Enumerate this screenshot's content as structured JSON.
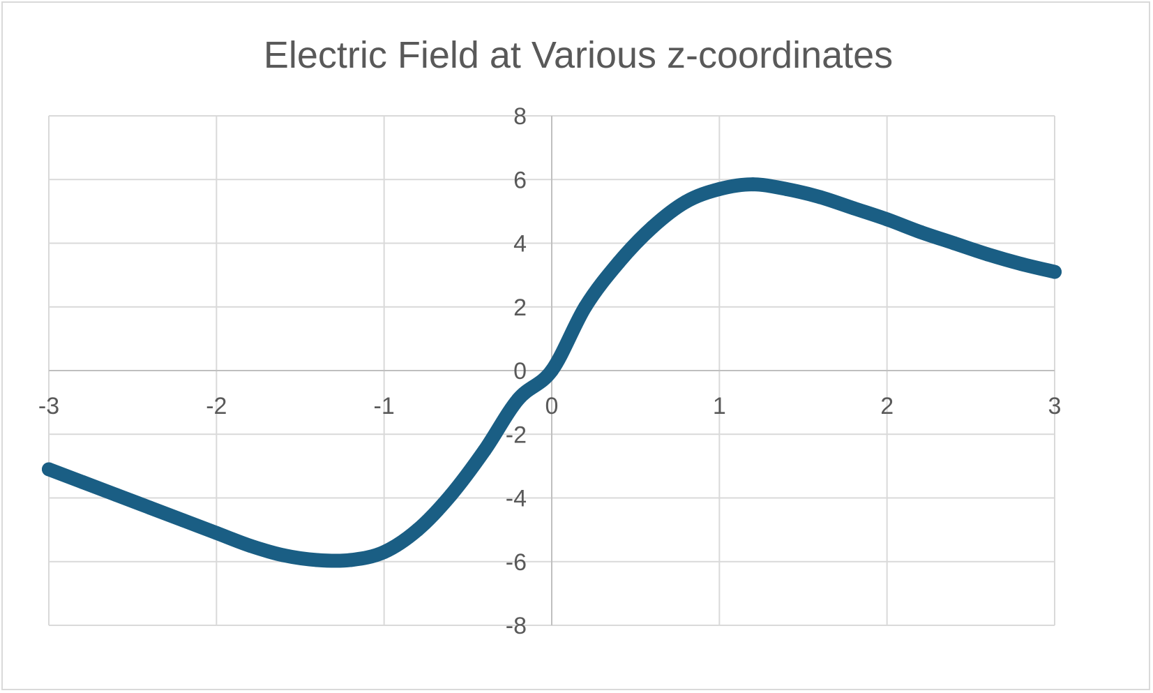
{
  "chart_data": {
    "type": "scatter",
    "title": "Electric Field at Various z-coordinates",
    "xlabel": "",
    "ylabel": "",
    "xlim": [
      -3,
      3
    ],
    "ylim": [
      -8,
      8
    ],
    "x_ticks": [
      -3,
      -2,
      -1,
      0,
      1,
      2,
      3
    ],
    "y_ticks": [
      -8,
      -6,
      -4,
      -2,
      0,
      2,
      4,
      6,
      8
    ],
    "x_tick_labels": [
      "-3",
      "-2",
      "-1",
      "0",
      "1",
      "2",
      "3"
    ],
    "y_tick_labels": [
      "-8",
      "-6",
      "-4",
      "-2",
      "0",
      "2",
      "4",
      "6",
      "8"
    ],
    "grid": true,
    "legend": "none",
    "series": [
      {
        "color": "#1a5e84",
        "x": [
          -3.0,
          -2.8,
          -2.6,
          -2.4,
          -2.2,
          -2.0,
          -1.8,
          -1.6,
          -1.4,
          -1.2,
          -1.0,
          -0.8,
          -0.6,
          -0.4,
          -0.2,
          0.0,
          0.2,
          0.4,
          0.6,
          0.8,
          1.0,
          1.2,
          1.4,
          1.6,
          1.8,
          2.0,
          2.2,
          2.4,
          2.6,
          2.8,
          3.0
        ],
        "y": [
          -3.1,
          -3.5,
          -3.9,
          -4.3,
          -4.7,
          -5.1,
          -5.5,
          -5.8,
          -5.95,
          -5.95,
          -5.7,
          -5.0,
          -3.9,
          -2.5,
          -0.9,
          0.0,
          2.0,
          3.4,
          4.5,
          5.3,
          5.7,
          5.85,
          5.7,
          5.45,
          5.1,
          4.75,
          4.35,
          4.0,
          3.65,
          3.35,
          3.1
        ]
      }
    ]
  }
}
